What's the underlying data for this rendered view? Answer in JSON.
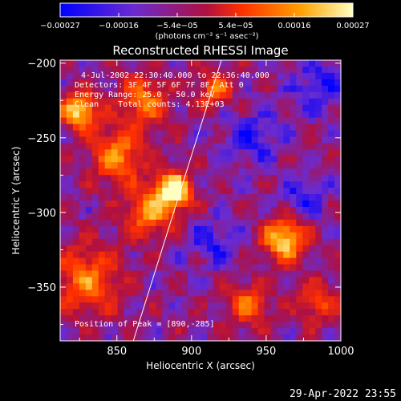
{
  "chart_data": {
    "type": "heatmap",
    "title": "Reconstructed RHESSI Image",
    "xlabel": "Heliocentric X (arcsec)",
    "ylabel": "Heliocentric Y (arcsec)",
    "xlim": [
      812,
      1000
    ],
    "ylim": [
      -386,
      -198
    ],
    "x_ticks": [
      850,
      900,
      950,
      1000
    ],
    "x_tick_labels": [
      "850",
      "900",
      "950",
      "1000"
    ],
    "y_ticks": [
      -200,
      -250,
      -300,
      -350
    ],
    "y_tick_labels": [
      "−200",
      "−250",
      "−300",
      "−350"
    ],
    "colorbar": {
      "range": [
        -0.00027,
        0.00027
      ],
      "tick_labels": [
        "−0.00027",
        "−0.00016",
        "−5.4e−05",
        "5.4e−05",
        "0.00016",
        "0.00027"
      ],
      "unit_label": "(photons cm⁻² s⁻¹ asec⁻²)",
      "colormap": [
        "#0000ff",
        "#6a2bd0",
        "#b01040",
        "#ff3000",
        "#ffa000",
        "#ffffc0"
      ]
    },
    "annotations": [
      "4-Jul-2002 22:30:40.000 to 22:36:40.000",
      "Detectors: 3F 4F 5F 6F 7F 8F, Att 0",
      "Energy Range: 25.0 - 50.0 keV",
      "Clean    Total counts: 4.13E+03"
    ],
    "peak_label": "Position of Peak = [890,-285]",
    "peak": [
      890,
      -285
    ],
    "limb_line": [
      [
        861,
        -386
      ],
      [
        920,
        -198
      ]
    ],
    "hot_regions": [
      {
        "x": 888,
        "y": -285,
        "r": 12,
        "level": 1.0
      },
      {
        "x": 825,
        "y": -232,
        "r": 12,
        "level": 0.85
      },
      {
        "x": 962,
        "y": -318,
        "r": 14,
        "level": 0.85
      },
      {
        "x": 850,
        "y": -262,
        "r": 18,
        "level": 0.6
      },
      {
        "x": 872,
        "y": -300,
        "r": 16,
        "level": 0.6
      },
      {
        "x": 830,
        "y": -345,
        "r": 22,
        "level": 0.55
      },
      {
        "x": 868,
        "y": -225,
        "r": 16,
        "level": 0.55
      },
      {
        "x": 915,
        "y": -218,
        "r": 12,
        "level": 0.5
      },
      {
        "x": 938,
        "y": -362,
        "r": 14,
        "level": 0.5
      },
      {
        "x": 985,
        "y": -360,
        "r": 14,
        "level": 0.4
      }
    ],
    "cold_regions": [
      {
        "x": 985,
        "y": -215,
        "r": 18
      },
      {
        "x": 940,
        "y": -250,
        "r": 18
      },
      {
        "x": 915,
        "y": -320,
        "r": 16
      },
      {
        "x": 975,
        "y": -290,
        "r": 14
      }
    ]
  },
  "footer": {
    "timestamp": "29-Apr-2022 23:55"
  }
}
